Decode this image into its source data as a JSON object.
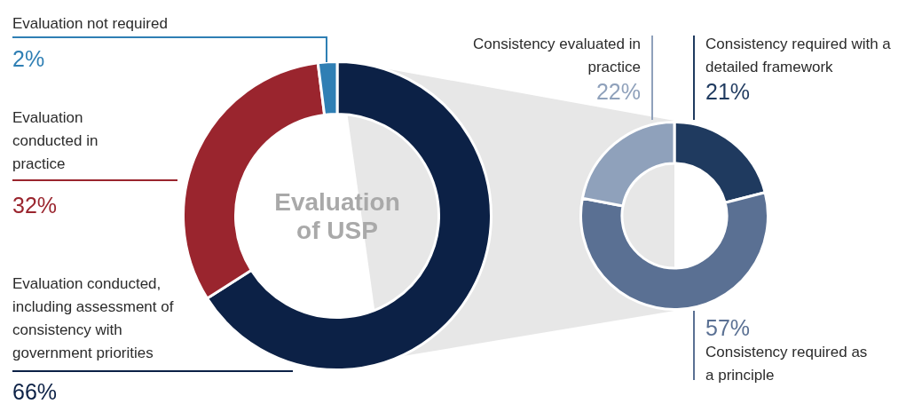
{
  "chart_data": [
    {
      "type": "donut",
      "title": "Evaluation of USP",
      "categories": [
        "Evaluation conducted, including assessment of consistency with government priorities",
        "Evaluation conducted in practice",
        "Evaluation not required"
      ],
      "values": [
        66,
        32,
        2
      ],
      "colors": [
        "#0c2146",
        "#9a252e",
        "#2f7fb4"
      ],
      "value_labels": [
        "66%",
        "32%",
        "2%"
      ],
      "legend": false
    },
    {
      "type": "donut",
      "categories": [
        "Consistency required with a detailed framework",
        "Consistency required as a principle",
        "Consistency evaluated in practice"
      ],
      "values": [
        21,
        57,
        22
      ],
      "colors": [
        "#1f3a5f",
        "#5a7093",
        "#8fa1bb"
      ],
      "value_labels": [
        "21%",
        "57%",
        "22%"
      ],
      "legend": false
    }
  ]
}
